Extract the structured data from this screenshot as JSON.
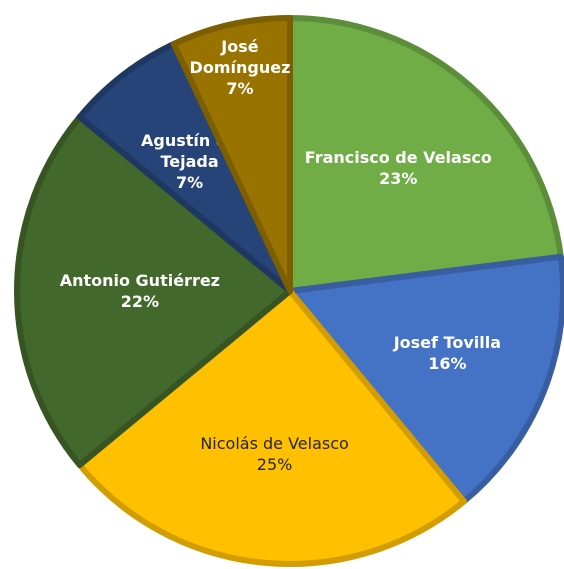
{
  "chart_data": {
    "type": "pie",
    "categories": [
      "Francisco de Velasco",
      "Josef Tovilla",
      "Nicolás de Velasco",
      "Antonio Gutiérrez",
      "Agustín de Tejada",
      "José Domínguez"
    ],
    "values": [
      23,
      16,
      25,
      22,
      7,
      7
    ],
    "value_labels": [
      "23%",
      "16%",
      "25%",
      "22%",
      "7%",
      "7%"
    ],
    "colors": [
      "#70ad47",
      "#4472c4",
      "#ffc000",
      "#43682b",
      "#264478",
      "#997300"
    ],
    "label_colors": [
      "#ffffff",
      "#ffffff",
      "#262626",
      "#ffffff",
      "#ffffff",
      "#ffffff"
    ]
  }
}
